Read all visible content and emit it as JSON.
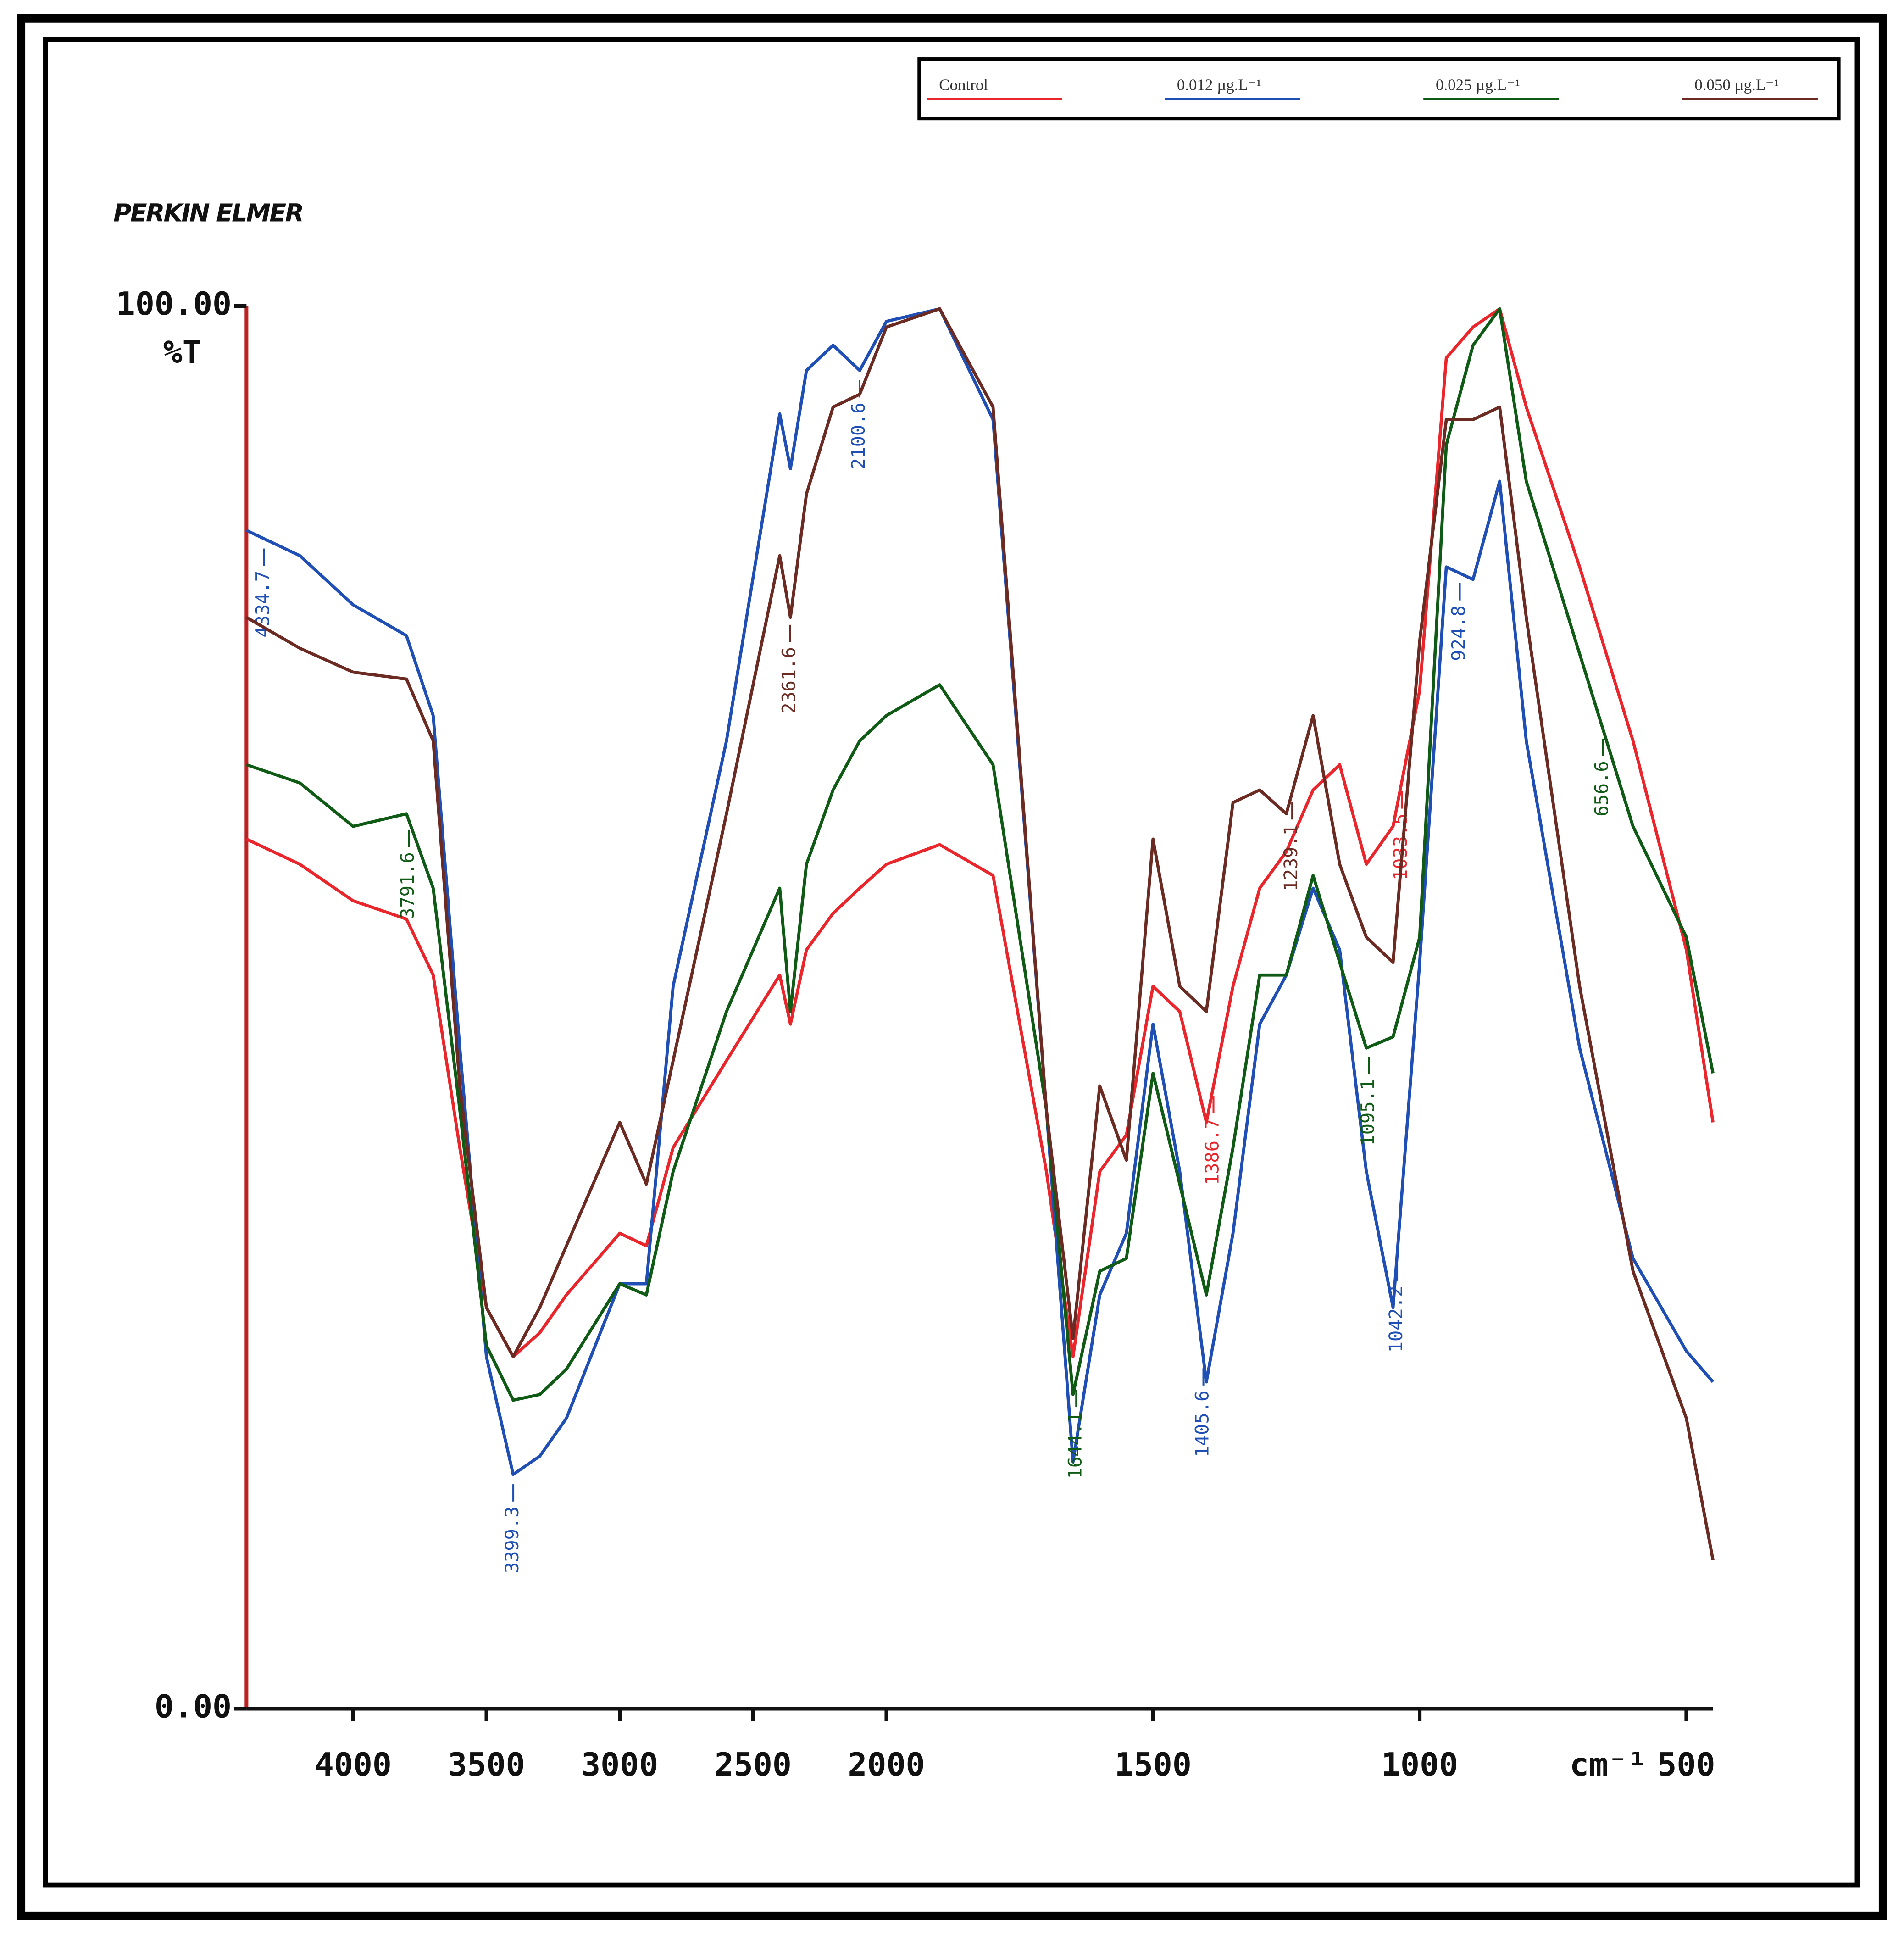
{
  "chart_data": {
    "type": "line",
    "brand": "PERKIN ELMER",
    "y_label": "%T",
    "x_label": "cm⁻¹",
    "xlim": [
      4400,
      450
    ],
    "scale_change_at": 2000,
    "xticks": [
      4000,
      3500,
      3000,
      2500,
      2000,
      1500,
      1000,
      500
    ],
    "ylim": [
      0,
      100
    ],
    "yticks": [
      {
        "value": 0,
        "label": "0.00"
      },
      {
        "value": 100,
        "label": "100.00"
      }
    ],
    "x": [
      4400,
      4200,
      4000,
      3800,
      3700,
      3600,
      3500,
      3400,
      3300,
      3200,
      3000,
      2900,
      2800,
      2600,
      2400,
      2360,
      2300,
      2200,
      2100,
      2000,
      1900,
      1800,
      1700,
      1650,
      1600,
      1550,
      1500,
      1450,
      1400,
      1350,
      1300,
      1250,
      1200,
      1150,
      1100,
      1050,
      1000,
      950,
      900,
      850,
      800,
      700,
      600,
      500,
      450
    ],
    "series": [
      {
        "name": "Control",
        "color": "#e8262b",
        "values": [
          62.0,
          60.2,
          57.6,
          56.3,
          52.3,
          40.0,
          28.6,
          25.1,
          26.8,
          29.5,
          33.9,
          33.0,
          40.0,
          46.2,
          52.3,
          48.8,
          54.1,
          56.7,
          58.5,
          60.2,
          61.6,
          59.4,
          38.3,
          25.1,
          38.3,
          40.9,
          51.5,
          49.7,
          41.8,
          51.5,
          58.5,
          61.1,
          65.5,
          67.3,
          60.2,
          62.9,
          72.6,
          96.3,
          98.5,
          99.8,
          92.8,
          81.4,
          69.0,
          54.1,
          41.8
        ],
        "peaks": [
          1386.7,
          1033.5
        ]
      },
      {
        "name": "0.012 µg.L⁻¹",
        "color": "#1f4fb4",
        "values": [
          84.0,
          82.2,
          78.7,
          76.5,
          70.8,
          47.1,
          25.1,
          16.7,
          18.0,
          20.7,
          30.3,
          30.3,
          51.5,
          69.0,
          92.3,
          88.4,
          95.4,
          97.2,
          95.4,
          98.9,
          99.8,
          91.9,
          42.7,
          17.6,
          29.5,
          33.9,
          48.8,
          38.3,
          23.3,
          33.9,
          48.8,
          52.3,
          58.5,
          54.1,
          38.3,
          28.6,
          53.2,
          81.4,
          80.5,
          87.5,
          69.0,
          47.1,
          32.1,
          25.5,
          23.3
        ],
        "peaks": [
          4334.7,
          3399.3,
          2100.6,
          1405.6,
          1042.2,
          924.8
        ]
      },
      {
        "name": "0.025 µg.L⁻¹",
        "color": "#0f5a14",
        "values": [
          67.3,
          66.0,
          62.9,
          63.8,
          58.5,
          42.7,
          25.9,
          22.0,
          22.4,
          24.2,
          30.3,
          29.5,
          38.3,
          49.7,
          58.5,
          49.7,
          60.2,
          65.5,
          69.0,
          70.8,
          73.0,
          67.3,
          42.7,
          22.4,
          31.2,
          32.1,
          45.3,
          37.4,
          29.5,
          40.0,
          52.3,
          52.3,
          59.4,
          53.2,
          47.1,
          47.9,
          55.0,
          90.1,
          97.2,
          99.8,
          87.5,
          75.2,
          62.9,
          55.0,
          45.3
        ],
        "peaks": [
          3791.6,
          1644.1,
          1095.1,
          656.6
        ]
      },
      {
        "name": "0.050 µg.L⁻¹",
        "color": "#6b2a22",
        "values": [
          77.8,
          75.6,
          73.9,
          73.4,
          69.0,
          44.4,
          28.6,
          25.1,
          28.6,
          33.0,
          41.8,
          37.4,
          46.2,
          63.8,
          82.2,
          77.8,
          86.6,
          92.8,
          93.7,
          98.5,
          99.8,
          92.8,
          42.7,
          26.4,
          44.4,
          39.1,
          62.0,
          51.5,
          49.7,
          64.6,
          65.5,
          63.8,
          70.8,
          60.2,
          55.0,
          53.2,
          76.1,
          91.9,
          91.9,
          92.8,
          77.8,
          51.5,
          31.2,
          20.7,
          10.6
        ],
        "peaks": [
          2361.6,
          1239.1
        ]
      }
    ]
  }
}
